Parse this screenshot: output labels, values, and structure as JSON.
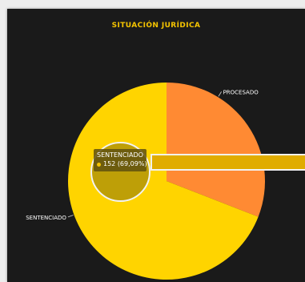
{
  "chart_data": {
    "type": "pie",
    "title": "SITUACIÓN JURÍDICA",
    "slices": [
      {
        "label": "PROCESADO",
        "value": 68,
        "color": "#ff8a33"
      },
      {
        "label": "SENTENCIADO",
        "value": 152,
        "color": "#ffd400"
      }
    ],
    "tooltip": {
      "label": "SENTENCIADO",
      "value_text": "152 (69,09%)"
    }
  },
  "colors": {
    "panel_background": "#1a1a1a",
    "title": "#f5c400",
    "label_text": "#ffffff"
  }
}
